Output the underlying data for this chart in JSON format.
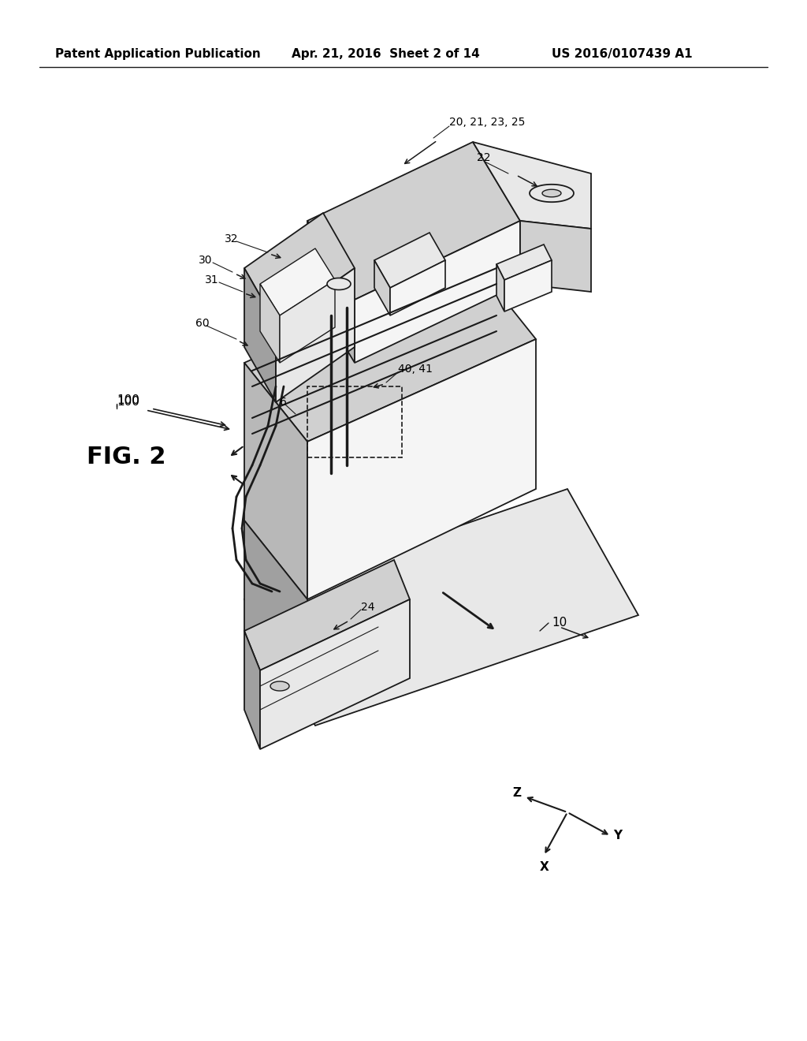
{
  "background_color": "#ffffff",
  "header_left": "Patent Application Publication",
  "header_mid": "Apr. 21, 2016  Sheet 2 of 14",
  "header_right": "US 2016/0107439 A1",
  "fig_label": "FIG. 2",
  "label_100": "100",
  "label_fig2": "FIG. 2",
  "labels": {
    "20_21_23_25": "20, 21, 23, 25",
    "22": "22",
    "30": "30",
    "31": "31",
    "32": "32",
    "60": "60",
    "6": "6",
    "40_41": "40, 41",
    "10": "10",
    "24": "24",
    "100": "100"
  },
  "line_color": "#1a1a1a",
  "text_color": "#000000"
}
